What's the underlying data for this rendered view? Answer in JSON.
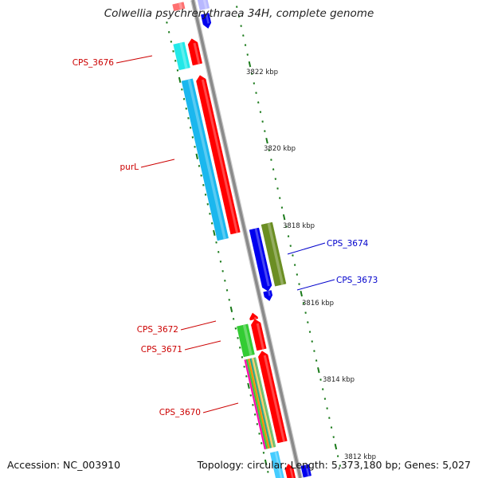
{
  "title": "Colwellia psychrerythraea 34H, complete genome",
  "footer": {
    "accession": "Accession: NC_003910",
    "summary": "Topology: circular; Length: 5,373,180 bp; Genes: 5,027"
  },
  "colors": {
    "backbone": "#8a8a8a",
    "tick": "#1a7a1a",
    "forward_gene": "#ff0000",
    "reverse_gene": "#0000ee",
    "cps_3676": "#22e8e8",
    "purl": "#1bb7ee",
    "cps_3673": "#6b8e23",
    "cps_3672": "#33cc33",
    "label_forward": "#cc0000",
    "label_reverse": "#0000cc"
  },
  "scale_labels": [
    {
      "text": "3822 kbp"
    },
    {
      "text": "3820 kbp"
    },
    {
      "text": "3818 kbp"
    },
    {
      "text": "3816 kbp"
    },
    {
      "text": "3814 kbp"
    },
    {
      "text": "3812 kbp"
    }
  ],
  "gene_labels": [
    {
      "text": "CPS_3676",
      "strand": "forward"
    },
    {
      "text": "purL",
      "strand": "forward"
    },
    {
      "text": "CPS_3674",
      "strand": "reverse"
    },
    {
      "text": "CPS_3673",
      "strand": "reverse"
    },
    {
      "text": "CPS_3672",
      "strand": "forward"
    },
    {
      "text": "CPS_3671",
      "strand": "forward"
    },
    {
      "text": "CPS_3670",
      "strand": "forward"
    }
  ]
}
